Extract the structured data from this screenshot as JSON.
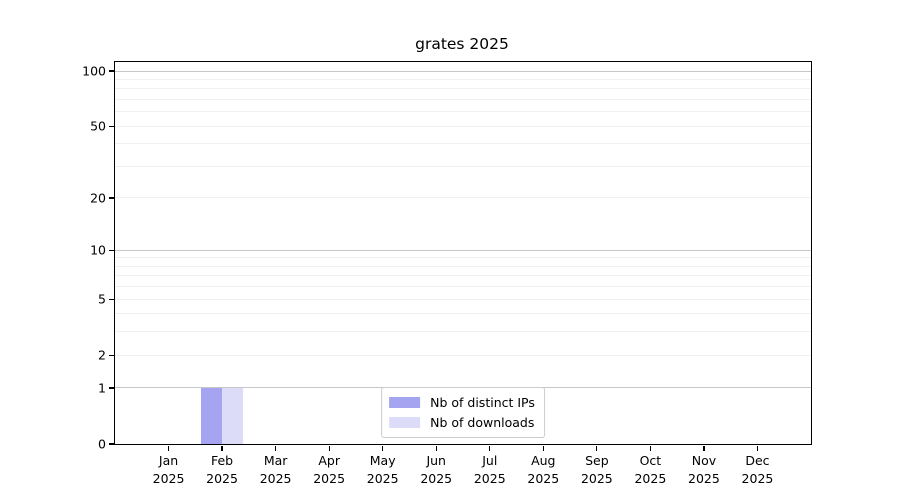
{
  "title": "grates 2025",
  "chart_data": {
    "type": "bar",
    "title": "grates 2025",
    "x_tick_months": [
      "Jan",
      "Feb",
      "Mar",
      "Apr",
      "May",
      "Jun",
      "Jul",
      "Aug",
      "Sep",
      "Oct",
      "Nov",
      "Dec"
    ],
    "x_tick_year": "2025",
    "series": [
      {
        "name": "Nb of distinct IPs",
        "color": "#a4a4f1",
        "values": [
          0,
          1,
          0,
          0,
          0,
          0,
          0,
          0,
          0,
          0,
          0,
          0
        ]
      },
      {
        "name": "Nb of downloads",
        "color": "#dcdcf8",
        "values": [
          0,
          1,
          0,
          0,
          0,
          0,
          0,
          0,
          0,
          0,
          0,
          0
        ]
      }
    ],
    "y_scale": "log1p",
    "ylim": [
      0,
      100
    ],
    "y_ticks": [
      0,
      1,
      2,
      5,
      10,
      20,
      50,
      100
    ],
    "major_gridlines": [
      1,
      10,
      100
    ],
    "minor_gridlines": [
      2,
      3,
      4,
      5,
      6,
      7,
      8,
      9,
      20,
      30,
      40,
      50,
      60,
      70,
      80,
      90
    ],
    "grid": true,
    "legend_position": "lower center"
  }
}
